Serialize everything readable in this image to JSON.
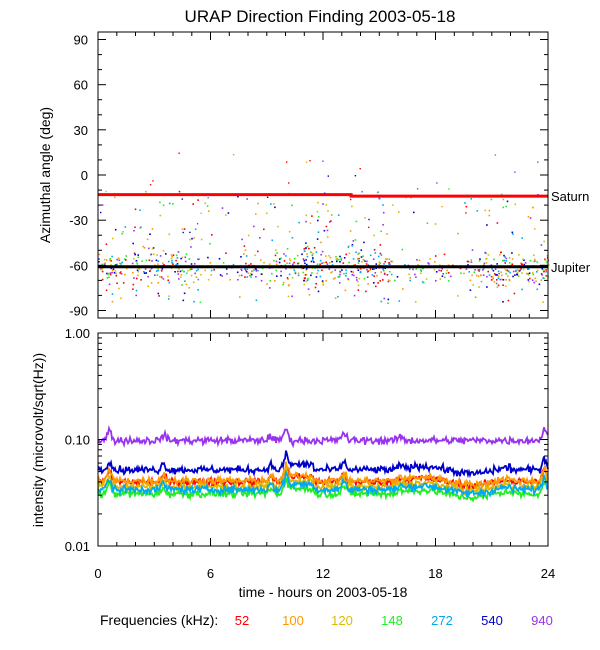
{
  "chart_data": {
    "type": "scatter",
    "title": "URAP Direction Finding  2003-05-18",
    "xlabel": "time - hours on 2003-05-18",
    "x_ticks": [
      0,
      6,
      12,
      18,
      24
    ],
    "xlim": [
      0,
      24
    ],
    "panels": [
      {
        "name": "azimuth",
        "ylabel": "Azimuthal angle (deg)",
        "ylim": [
          -95,
          95
        ],
        "y_ticks": [
          -90,
          -60,
          -30,
          0,
          30,
          60,
          90
        ],
        "reference_lines": [
          {
            "name": "Saturn",
            "label": "Saturn",
            "color": "#ff0000",
            "points": [
              [
                0,
                -13
              ],
              [
                13.5,
                -13
              ],
              [
                13.5,
                -14
              ],
              [
                24,
                -14
              ]
            ]
          },
          {
            "name": "Jupiter",
            "label": "Jupiter",
            "color": "#000000",
            "points": [
              [
                0,
                -61
              ],
              [
                24,
                -61
              ]
            ]
          }
        ]
      },
      {
        "name": "intensity",
        "ylabel": "intensity (microvolt/sqrt(Hz))",
        "scale": "log",
        "ylim": [
          0.01,
          1.0
        ],
        "y_ticks": [
          0.01,
          0.1,
          1.0
        ],
        "y_tick_labels": [
          "0.01",
          "0.10",
          "1.00"
        ],
        "baselines": [
          {
            "freq": "52",
            "value": 0.04
          },
          {
            "freq": "100",
            "value": 0.041
          },
          {
            "freq": "120",
            "value": 0.036
          },
          {
            "freq": "148",
            "value": 0.031
          },
          {
            "freq": "272",
            "value": 0.034
          },
          {
            "freq": "540",
            "value": 0.052
          },
          {
            "freq": "940",
            "value": 0.098
          }
        ]
      }
    ],
    "legend": {
      "title": "Frequencies (kHz):",
      "position": "bottom",
      "series": [
        {
          "name": "52",
          "color": "#ff0000"
        },
        {
          "name": "100",
          "color": "#ff9900"
        },
        {
          "name": "120",
          "color": "#ddbb00"
        },
        {
          "name": "148",
          "color": "#22ee22"
        },
        {
          "name": "272",
          "color": "#00aaee"
        },
        {
          "name": "540",
          "color": "#0000cc"
        },
        {
          "name": "940",
          "color": "#9933ee"
        }
      ]
    },
    "azimuth_clusters": [
      {
        "t": [
          0,
          1.5
        ],
        "center": -62,
        "spread": 10,
        "n": 70
      },
      {
        "t": [
          1.8,
          5.5
        ],
        "center": -60,
        "spread": 12,
        "n": 170
      },
      {
        "t": [
          5.5,
          7.5
        ],
        "center": -63,
        "spread": 8,
        "n": 30
      },
      {
        "t": [
          7.5,
          10.8
        ],
        "center": -62,
        "spread": 10,
        "n": 130
      },
      {
        "t": [
          10.8,
          15.5
        ],
        "center": -60,
        "spread": 12,
        "n": 270
      },
      {
        "t": [
          15.5,
          20
        ],
        "center": -62,
        "spread": 8,
        "n": 90
      },
      {
        "t": [
          20,
          24
        ],
        "center": -62,
        "spread": 9,
        "n": 200
      }
    ],
    "intensity_bursts": [
      {
        "t": 0.6,
        "height": 1.25
      },
      {
        "t": 3.5,
        "height": 1.15
      },
      {
        "t": 9.2,
        "height": 1.12
      },
      {
        "t": 10.0,
        "height": 1.3
      },
      {
        "t": 13.1,
        "height": 1.2
      },
      {
        "t": 16.1,
        "height": 1.1
      },
      {
        "t": 23.8,
        "height": 1.3
      }
    ]
  }
}
